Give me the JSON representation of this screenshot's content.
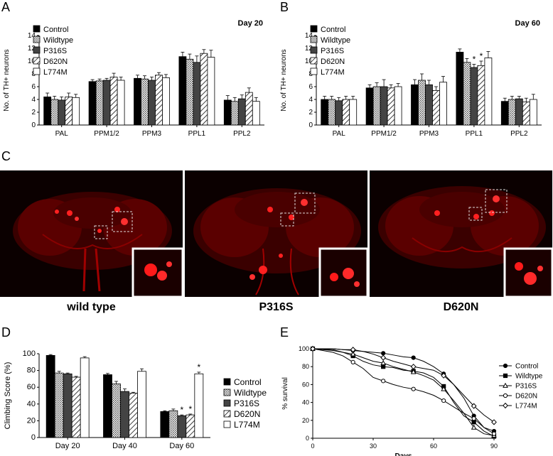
{
  "panels": {
    "A": "A",
    "B": "B",
    "C": "C",
    "D": "D",
    "E": "E"
  },
  "legend_groups": [
    "Control",
    "Wildtype",
    "P316S",
    "D620N",
    "L774M"
  ],
  "chart_data": [
    {
      "id": "A",
      "type": "bar",
      "title": "Day 20",
      "ylabel": "No. of TH+ neurons",
      "ylim": [
        0,
        14
      ],
      "yticks": [
        0,
        2,
        4,
        6,
        8,
        10,
        12,
        14
      ],
      "categories": [
        "PAL",
        "PPM1/2",
        "PPM3",
        "PPL1",
        "PPL2"
      ],
      "series": [
        {
          "name": "Control",
          "values": [
            4.4,
            6.8,
            7.3,
            10.7,
            3.9
          ],
          "errors": [
            0.6,
            0.3,
            0.5,
            0.7,
            0.7
          ]
        },
        {
          "name": "Wildtype",
          "values": [
            4.0,
            6.9,
            7.2,
            10.3,
            3.7
          ],
          "errors": [
            0.5,
            0.3,
            0.5,
            0.8,
            0.6
          ]
        },
        {
          "name": "P316S",
          "values": [
            3.9,
            7.0,
            7.0,
            9.8,
            4.1
          ],
          "errors": [
            0.5,
            0.3,
            0.5,
            1.0,
            0.6
          ]
        },
        {
          "name": "D620N",
          "values": [
            4.4,
            7.5,
            7.8,
            11.2,
            5.1
          ],
          "errors": [
            0.6,
            0.6,
            0.4,
            0.6,
            0.7
          ]
        },
        {
          "name": "L774M",
          "values": [
            4.3,
            7.0,
            7.4,
            10.6,
            3.7
          ],
          "errors": [
            0.5,
            0.5,
            0.5,
            1.1,
            0.6
          ]
        }
      ],
      "annotations": []
    },
    {
      "id": "B",
      "type": "bar",
      "title": "Day 60",
      "ylabel": "No. of TH+ neurons",
      "ylim": [
        0,
        14
      ],
      "yticks": [
        0,
        2,
        4,
        6,
        8,
        10,
        12,
        14
      ],
      "categories": [
        "PAL",
        "PPM1/2",
        "PPM3",
        "PPL1",
        "PPL2"
      ],
      "series": [
        {
          "name": "Control",
          "values": [
            4.0,
            5.8,
            6.3,
            11.4,
            3.7
          ],
          "errors": [
            0.5,
            0.5,
            0.8,
            0.5,
            0.5
          ]
        },
        {
          "name": "Wildtype",
          "values": [
            4.0,
            6.0,
            7.0,
            9.8,
            4.0
          ],
          "errors": [
            0.5,
            0.6,
            1.0,
            0.6,
            0.5
          ]
        },
        {
          "name": "P316S",
          "values": [
            3.8,
            6.0,
            6.3,
            9.0,
            4.1
          ],
          "errors": [
            0.5,
            1.1,
            0.7,
            0.5,
            0.4
          ]
        },
        {
          "name": "D620N",
          "values": [
            4.0,
            5.8,
            5.4,
            9.3,
            3.6
          ],
          "errors": [
            0.5,
            0.5,
            0.6,
            0.7,
            0.6
          ]
        },
        {
          "name": "L774M",
          "values": [
            4.0,
            6.0,
            6.7,
            10.5,
            4.0
          ],
          "errors": [
            0.5,
            0.5,
            0.9,
            1.0,
            0.8
          ]
        }
      ],
      "annotations": [
        {
          "series": "P316S",
          "category": "PPL1",
          "text": "*"
        },
        {
          "series": "D620N",
          "category": "PPL1",
          "text": "*"
        }
      ]
    },
    {
      "id": "D",
      "type": "bar",
      "title": "",
      "ylabel": "Climbing Score (%)",
      "ylim": [
        0,
        100
      ],
      "yticks": [
        0,
        20,
        40,
        60,
        80,
        100
      ],
      "categories": [
        "Day 20",
        "Day 40",
        "Day 60"
      ],
      "series": [
        {
          "name": "Control",
          "values": [
            98,
            75,
            31
          ],
          "errors": [
            1,
            1.5,
            1
          ]
        },
        {
          "name": "Wildtype",
          "values": [
            77,
            64,
            32
          ],
          "errors": [
            2,
            3,
            2
          ]
        },
        {
          "name": "P316S",
          "values": [
            76,
            55,
            26
          ],
          "errors": [
            1,
            3,
            1
          ]
        },
        {
          "name": "D620N",
          "values": [
            72,
            53,
            27
          ],
          "errors": [
            1,
            1,
            1
          ]
        },
        {
          "name": "L774M",
          "values": [
            95,
            79,
            76
          ],
          "errors": [
            1.5,
            3,
            2
          ]
        }
      ],
      "annotations": [
        {
          "series": "P316S",
          "category": "Day 60",
          "text": "*"
        },
        {
          "series": "D620N",
          "category": "Day 60",
          "text": "*"
        },
        {
          "series": "L774M",
          "category": "Day 60",
          "text": "*"
        }
      ]
    },
    {
      "id": "E",
      "type": "line",
      "title": "",
      "xlabel": "Days",
      "ylabel": "% survival",
      "xlim": [
        0,
        90
      ],
      "ylim": [
        0,
        100
      ],
      "xticks": [
        0,
        30,
        60,
        90
      ],
      "yticks": [
        0,
        20,
        40,
        60,
        80,
        100
      ],
      "series": [
        {
          "name": "Control",
          "marker": "circle-filled",
          "x": [
            0,
            10,
            15,
            20,
            25,
            30,
            35,
            40,
            45,
            50,
            55,
            60,
            65,
            70,
            75,
            80,
            85,
            90
          ],
          "y": [
            100,
            100,
            99,
            98,
            97,
            96,
            95,
            93,
            91,
            90,
            86,
            80,
            72,
            60,
            45,
            25,
            12,
            8
          ]
        },
        {
          "name": "Wildtype",
          "marker": "square-filled",
          "x": [
            0,
            10,
            15,
            20,
            25,
            30,
            35,
            40,
            45,
            50,
            55,
            60,
            65,
            70,
            75,
            80,
            85,
            90
          ],
          "y": [
            100,
            99,
            96,
            92,
            86,
            82,
            80,
            79,
            76,
            75,
            73,
            68,
            58,
            40,
            25,
            18,
            8,
            2
          ]
        },
        {
          "name": "P316S",
          "marker": "triangle-open",
          "x": [
            0,
            10,
            15,
            20,
            25,
            30,
            35,
            40,
            45,
            50,
            55,
            60,
            65,
            70,
            75,
            80,
            85,
            90
          ],
          "y": [
            100,
            98,
            96,
            94,
            90,
            86,
            84,
            80,
            77,
            74,
            70,
            65,
            55,
            42,
            28,
            12,
            5,
            3
          ]
        },
        {
          "name": "D620N",
          "marker": "circle-open",
          "x": [
            0,
            10,
            15,
            20,
            25,
            30,
            35,
            40,
            45,
            50,
            55,
            60,
            65,
            70,
            75,
            80,
            85,
            90
          ],
          "y": [
            100,
            96,
            92,
            85,
            78,
            68,
            64,
            60,
            57,
            55,
            52,
            48,
            42,
            35,
            28,
            22,
            12,
            5
          ]
        },
        {
          "name": "L774M",
          "marker": "diamond-open",
          "x": [
            0,
            10,
            15,
            20,
            25,
            30,
            35,
            40,
            45,
            50,
            55,
            60,
            65,
            70,
            75,
            80,
            85,
            90
          ],
          "y": [
            100,
            100,
            99,
            99,
            97,
            94,
            90,
            86,
            83,
            80,
            78,
            76,
            70,
            60,
            48,
            36,
            26,
            18
          ]
        }
      ]
    }
  ],
  "micrographs": [
    {
      "label": "wild type"
    },
    {
      "label": "P316S"
    },
    {
      "label": "D620N"
    }
  ]
}
